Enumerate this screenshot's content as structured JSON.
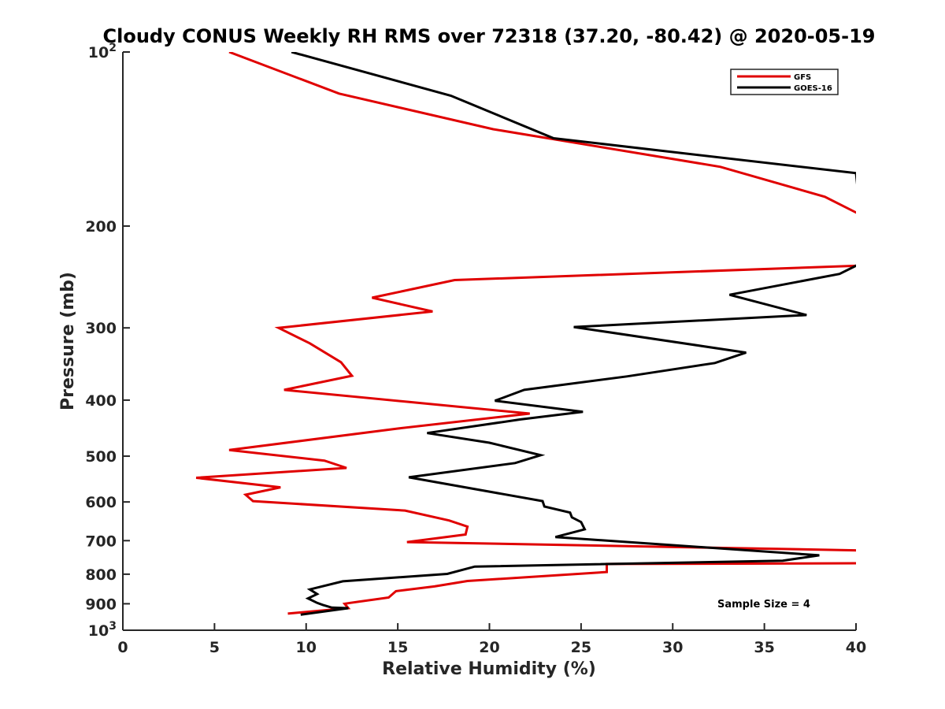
{
  "chart_data": {
    "type": "line",
    "title": "Cloudy CONUS Weekly RH RMS over 72318 (37.20, -80.42) @ 2020-05-19",
    "xlabel": "Relative Humidity (%)",
    "ylabel": "Pressure (mb)",
    "xlim": [
      0,
      40
    ],
    "ylim": [
      100,
      1000
    ],
    "yscale": "log",
    "yreversed": true,
    "x_ticks": [
      0,
      5,
      10,
      15,
      20,
      25,
      30,
      35,
      40
    ],
    "x_tick_labels": [
      "0",
      "5",
      "10",
      "15",
      "20",
      "25",
      "30",
      "35",
      "40"
    ],
    "y_ticks": [
      100,
      200,
      300,
      400,
      500,
      600,
      700,
      800,
      900,
      1000
    ],
    "y_tick_labels": [
      {
        "base": "10",
        "exp": "2"
      },
      {
        "base": "200",
        "exp": ""
      },
      {
        "base": "300",
        "exp": ""
      },
      {
        "base": "400",
        "exp": ""
      },
      {
        "base": "500",
        "exp": ""
      },
      {
        "base": "600",
        "exp": ""
      },
      {
        "base": "700",
        "exp": ""
      },
      {
        "base": "800",
        "exp": ""
      },
      {
        "base": "900",
        "exp": ""
      },
      {
        "base": "10",
        "exp": "3"
      }
    ],
    "legend_position": "top-right",
    "annotation": "Sample Size = 4",
    "series": [
      {
        "name": "GFS",
        "color": "#e00000",
        "points": [
          [
            5.8,
            100
          ],
          [
            11.8,
            118
          ],
          [
            20.2,
            136
          ],
          [
            32.6,
            158
          ],
          [
            38.3,
            178
          ],
          [
            40.5,
            193
          ],
          [
            40.5,
            234
          ],
          [
            18.1,
            248
          ],
          [
            13.6,
            266
          ],
          [
            16.9,
            281
          ],
          [
            8.5,
            300
          ],
          [
            10.2,
            319
          ],
          [
            11.9,
            344
          ],
          [
            12.5,
            363
          ],
          [
            8.8,
            384
          ],
          [
            22.2,
            422
          ],
          [
            15.0,
            448
          ],
          [
            5.8,
            488
          ],
          [
            11.0,
            509
          ],
          [
            12.2,
            524
          ],
          [
            4.0,
            545
          ],
          [
            8.6,
            566
          ],
          [
            6.7,
            583
          ],
          [
            7.1,
            598
          ],
          [
            15.4,
            621
          ],
          [
            17.8,
            646
          ],
          [
            18.8,
            662
          ],
          [
            18.7,
            683
          ],
          [
            15.5,
            704
          ],
          [
            40.5,
            728
          ],
          [
            40.5,
            766
          ],
          [
            26.4,
            768
          ],
          [
            26.4,
            793
          ],
          [
            18.8,
            822
          ],
          [
            17.0,
            840
          ],
          [
            14.9,
            856
          ],
          [
            14.5,
            878
          ],
          [
            12.4,
            897
          ],
          [
            12.1,
            900
          ],
          [
            12.3,
            916
          ],
          [
            9.0,
            936
          ]
        ]
      },
      {
        "name": "GOES-16",
        "color": "#000000",
        "points": [
          [
            9.2,
            100
          ],
          [
            17.9,
            119
          ],
          [
            23.5,
            141
          ],
          [
            40.0,
            162
          ],
          [
            40.5,
            230
          ],
          [
            39.1,
            242
          ],
          [
            33.1,
            263
          ],
          [
            37.3,
            285
          ],
          [
            24.6,
            299
          ],
          [
            34.0,
            331
          ],
          [
            32.3,
            345
          ],
          [
            27.5,
            364
          ],
          [
            21.9,
            384
          ],
          [
            20.3,
            401
          ],
          [
            25.1,
            419
          ],
          [
            21.7,
            432
          ],
          [
            16.6,
            456
          ],
          [
            20.0,
            474
          ],
          [
            22.8,
            498
          ],
          [
            21.4,
            514
          ],
          [
            15.6,
            544
          ],
          [
            22.9,
            598
          ],
          [
            23.0,
            611
          ],
          [
            24.4,
            626
          ],
          [
            24.5,
            638
          ],
          [
            25.0,
            650
          ],
          [
            25.2,
            669
          ],
          [
            23.6,
            690
          ],
          [
            38.0,
            742
          ],
          [
            36.0,
            758
          ],
          [
            19.2,
            776
          ],
          [
            17.7,
            799
          ],
          [
            12.0,
            823
          ],
          [
            10.2,
            850
          ],
          [
            10.6,
            866
          ],
          [
            10.1,
            881
          ],
          [
            10.6,
            897
          ],
          [
            10.9,
            904
          ],
          [
            11.4,
            914
          ],
          [
            12.3,
            916
          ],
          [
            9.7,
            940
          ]
        ]
      }
    ]
  }
}
